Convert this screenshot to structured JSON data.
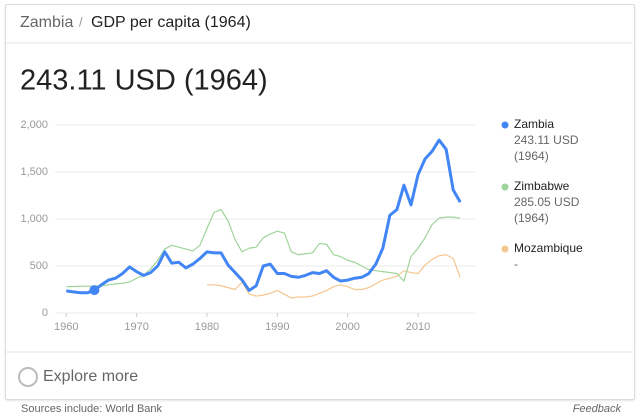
{
  "breadcrumb": {
    "country": "Zambia",
    "separator": "/",
    "topic": "GDP per capita (1964)"
  },
  "headline": "243.11 USD (1964)",
  "chart_data": {
    "type": "line",
    "x": [
      1960,
      1961,
      1962,
      1963,
      1964,
      1965,
      1966,
      1967,
      1968,
      1969,
      1970,
      1971,
      1972,
      1973,
      1974,
      1975,
      1976,
      1977,
      1978,
      1979,
      1980,
      1981,
      1982,
      1983,
      1984,
      1985,
      1986,
      1987,
      1988,
      1989,
      1990,
      1991,
      1992,
      1993,
      1994,
      1995,
      1996,
      1997,
      1998,
      1999,
      2000,
      2001,
      2002,
      2003,
      2004,
      2005,
      2006,
      2007,
      2008,
      2009,
      2010,
      2011,
      2012,
      2013,
      2014,
      2015,
      2016
    ],
    "xlim": [
      1958.4,
      2018.1
    ],
    "xticks": [
      1960,
      1970,
      1980,
      1990,
      2000,
      2010
    ],
    "ylim": [
      0,
      2000
    ],
    "yticks": [
      0,
      500,
      {
        "value": 1000,
        "label": "1,000"
      },
      {
        "value": 1500,
        "label": "1,500"
      },
      {
        "value": 2000,
        "label": "2,000"
      }
    ],
    "grid": true,
    "highlight_year": 1964,
    "series": [
      {
        "name": "Zambia",
        "color": "#4285f4",
        "legend_lines": [
          "243.11 USD",
          "(1964)"
        ],
        "values": [
          235,
          225,
          215,
          215,
          243.11,
          300,
          350,
          370,
          420,
          490,
          440,
          400,
          430,
          500,
          650,
          530,
          540,
          480,
          520,
          580,
          650,
          640,
          640,
          510,
          430,
          350,
          240,
          290,
          500,
          520,
          420,
          420,
          390,
          380,
          400,
          430,
          420,
          450,
          380,
          340,
          350,
          370,
          380,
          420,
          520,
          690,
          1040,
          1100,
          1360,
          1150,
          1470,
          1640,
          1720,
          1840,
          1740,
          1310,
          1180
        ]
      },
      {
        "name": "Zimbabwe",
        "color": "#9fd49a",
        "legend_lines": [
          "285.05 USD",
          "(1964)"
        ],
        "values": [
          280,
          282,
          284,
          285,
          285.05,
          290,
          300,
          310,
          315,
          330,
          370,
          400,
          470,
          560,
          680,
          720,
          700,
          680,
          660,
          720,
          900,
          1070,
          1100,
          980,
          780,
          650,
          690,
          700,
          800,
          840,
          870,
          850,
          650,
          620,
          630,
          640,
          740,
          730,
          620,
          600,
          560,
          540,
          500,
          460,
          450,
          440,
          430,
          420,
          340,
          600,
          690,
          800,
          940,
          1010,
          1020,
          1020,
          1010
        ]
      },
      {
        "name": "Mozambique",
        "color": "#f6c68f",
        "legend_lines": [
          "-"
        ],
        "values": [
          null,
          null,
          null,
          null,
          null,
          null,
          null,
          null,
          null,
          null,
          null,
          null,
          null,
          null,
          null,
          null,
          null,
          null,
          null,
          null,
          300,
          300,
          290,
          270,
          250,
          330,
          200,
          180,
          190,
          210,
          240,
          200,
          160,
          170,
          170,
          180,
          210,
          240,
          280,
          300,
          280,
          250,
          250,
          270,
          310,
          350,
          370,
          390,
          450,
          430,
          420,
          510,
          570,
          610,
          620,
          580,
          380
        ]
      }
    ]
  },
  "explore": "Explore more",
  "footer": {
    "sources": "Sources include: World Bank",
    "feedback": "Feedback"
  }
}
